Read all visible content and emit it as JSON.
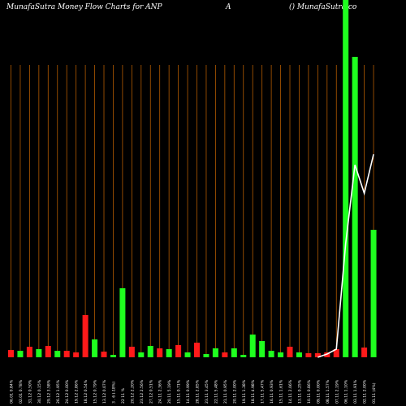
{
  "header": {
    "left": "MunafaSutra  Money Flow  Charts for ANP",
    "middle": "A",
    "right": "() MunafaSutra.co"
  },
  "chart_data": {
    "type": "bar",
    "ylim": [
      0,
      440
    ],
    "colors": {
      "up": "#1fff1f",
      "down": "#ff1a1a",
      "line": "#ffffff",
      "grid": "#b25a00",
      "background": "#000000"
    },
    "categories": [
      "06.01 0.84%",
      "02.01 0.78%",
      "31.12 0.50%",
      "30.12 0.15%",
      "29.12 3.58%",
      "26.12 1.95%",
      "24.12 0.00%",
      "19.12 2.86%",
      "18.12 0.54%",
      "15.12 0.79%",
      "13.12 0.07%",
      "3 . 6 (-18%)",
      "22 11 %",
      "20.12 2.20%",
      "23.12 2.56%",
      "27.12 0.51%",
      "24.11 2.36%",
      "20.11 5.19%",
      "15.11 0.71%",
      "14.11 0.99%",
      "28.11 2.85%",
      "23.11 3.45%",
      "22.11 5.48%",
      "21.11 0.95%",
      "20.11 2.00%",
      "19.11 1.38%",
      "18.11 4.98%",
      "17.11 5.47%",
      "16.11 0.93%",
      "15.11 1.61%",
      "14.11 2.06%",
      "13.11 0.25%",
      "10.11 0.86%",
      "09.11 0.00%",
      "08.11 1.57%",
      "07.11 2.19%",
      "06.11 1.10%",
      "03.11 1.91%",
      "02.11 2.00%",
      "01.11 (4%)"
    ],
    "series": [
      {
        "values": [
          9,
          8,
          13,
          10,
          14,
          8,
          8,
          6,
          52,
          22,
          7,
          3,
          85,
          13,
          6,
          14,
          11,
          10,
          15,
          6,
          18,
          4,
          11,
          6,
          11,
          3,
          28,
          20,
          8,
          6,
          13,
          6,
          5,
          5,
          6,
          10,
          440,
          370,
          12,
          157
        ],
        "directions": [
          "down",
          "up",
          "down",
          "up",
          "down",
          "up",
          "down",
          "down",
          "down",
          "up",
          "down",
          "up",
          "up",
          "down",
          "up",
          "up",
          "down",
          "up",
          "down",
          "up",
          "down",
          "up",
          "up",
          "down",
          "up",
          "up",
          "up",
          "up",
          "up",
          "up",
          "down",
          "up",
          "down",
          "down",
          "down",
          "down",
          "up",
          "up",
          "down",
          "up"
        ]
      },
      {
        "values": [
          null,
          null,
          null,
          null,
          null,
          null,
          null,
          null,
          null,
          null,
          null,
          null,
          null,
          null,
          null,
          null,
          null,
          null,
          null,
          null,
          null,
          null,
          null,
          null,
          null,
          null,
          null,
          null,
          null,
          null,
          null,
          null,
          null,
          0,
          4,
          10,
          140,
          237,
          202,
          250
        ]
      }
    ]
  }
}
